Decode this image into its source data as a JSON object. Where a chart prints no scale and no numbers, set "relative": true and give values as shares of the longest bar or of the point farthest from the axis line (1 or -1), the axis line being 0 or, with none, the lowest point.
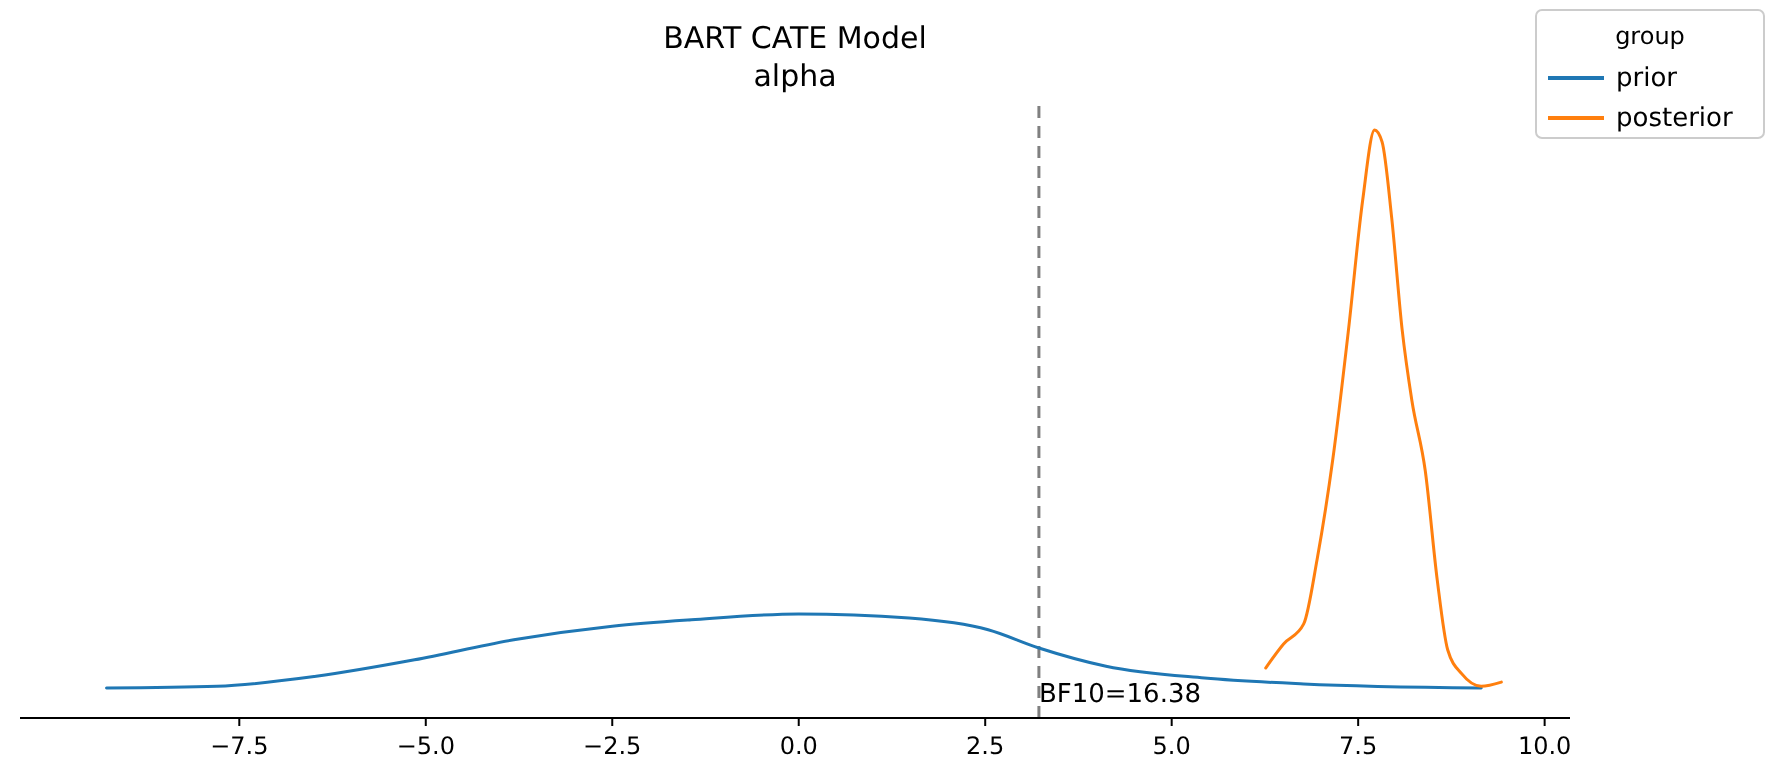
{
  "chart_data": {
    "type": "line",
    "title": "BART CATE Model",
    "subtitle": "alpha",
    "relative": true,
    "legend_title": "group",
    "legend": "top right",
    "grid": false,
    "tick_labels": "x",
    "xlim": [
      -10.44,
      10.34
    ],
    "xticks": [
      {
        "value": -7.5,
        "label": "−7.5"
      },
      {
        "value": -5,
        "label": "−5.0"
      },
      {
        "value": -2.5,
        "label": "−2.5"
      },
      {
        "value": 0,
        "label": "0.0"
      },
      {
        "value": 2.5,
        "label": "2.5"
      },
      {
        "value": 5,
        "label": "5.0"
      },
      {
        "value": 7.5,
        "label": "7.5"
      },
      {
        "value": 10,
        "label": "10.0"
      }
    ],
    "series": [
      {
        "name": "prior",
        "color": "#1f77b4",
        "x": [
          -9.28,
          -7.8,
          -6.47,
          -5.15,
          -3.82,
          -2.5,
          -1.44,
          0,
          1.48,
          2.54,
          3.22,
          4.12,
          5.44,
          6.77,
          9.15
        ],
        "values": [
          0.051,
          0.054,
          0.071,
          0.099,
          0.133,
          0.156,
          0.167,
          0.177,
          0.17,
          0.15,
          0.119,
          0.088,
          0.068,
          0.058,
          0.051
        ]
      },
      {
        "name": "posterior",
        "color": "#ff7f0e",
        "x": [
          6.26,
          6.5,
          6.77,
          6.95,
          7.16,
          7.37,
          7.56,
          7.72,
          7.82,
          7.95,
          8.09,
          8.22,
          8.4,
          8.56,
          8.7,
          8.89,
          9.15,
          9.42
        ],
        "values": [
          0.085,
          0.126,
          0.16,
          0.27,
          0.44,
          0.66,
          0.88,
          1.0,
          0.98,
          0.85,
          0.66,
          0.54,
          0.42,
          0.235,
          0.116,
          0.075,
          0.054,
          0.061
        ]
      }
    ],
    "ref_lines": [
      {
        "axis": "x",
        "value": 3.22,
        "color": "#808080",
        "line_style": "dashed"
      }
    ],
    "annotations": [
      "BF10=16.38"
    ]
  }
}
